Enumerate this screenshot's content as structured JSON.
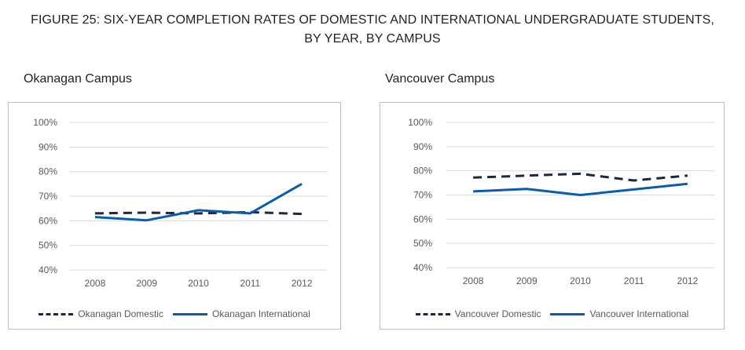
{
  "figure": {
    "title_line1": "FIGURE 25: SIX-YEAR COMPLETION RATES OF DOMESTIC AND INTERNATIONAL UNDERGRADUATE STUDENTS,",
    "title_line2": "BY YEAR, BY CAMPUS"
  },
  "colors": {
    "domestic": "#1a2840",
    "international": "#0b5cad",
    "grid": "#d9d9d9"
  },
  "chart_data": [
    {
      "type": "line",
      "title": "Okanagan Campus",
      "categories": [
        "2008",
        "2009",
        "2010",
        "2011",
        "2012"
      ],
      "yticks": [
        "100%",
        "90%",
        "80%",
        "70%",
        "60%",
        "50%",
        "40%"
      ],
      "ylim": [
        40,
        100
      ],
      "grid": true,
      "legend": "bottom",
      "series": [
        {
          "name": "Okanagan Domestic",
          "style": "dashed",
          "values": [
            63,
            63.3,
            63,
            63.5,
            62.8
          ]
        },
        {
          "name": "Okanagan International",
          "style": "solid",
          "values": [
            61.5,
            60.2,
            64.3,
            63,
            75
          ]
        }
      ]
    },
    {
      "type": "line",
      "title": "Vancouver Campus",
      "categories": [
        "2008",
        "2009",
        "2010",
        "2011",
        "2012"
      ],
      "yticks": [
        "100%",
        "90%",
        "80%",
        "70%",
        "60%",
        "50%",
        "40%"
      ],
      "ylim": [
        40,
        100
      ],
      "grid": true,
      "legend": "bottom",
      "series": [
        {
          "name": "Vancouver Domestic",
          "style": "dashed",
          "values": [
            77.2,
            78,
            78.8,
            76,
            78
          ]
        },
        {
          "name": "Vancouver International",
          "style": "solid",
          "values": [
            71.5,
            72.5,
            70,
            72.3,
            74.6
          ]
        }
      ]
    }
  ]
}
